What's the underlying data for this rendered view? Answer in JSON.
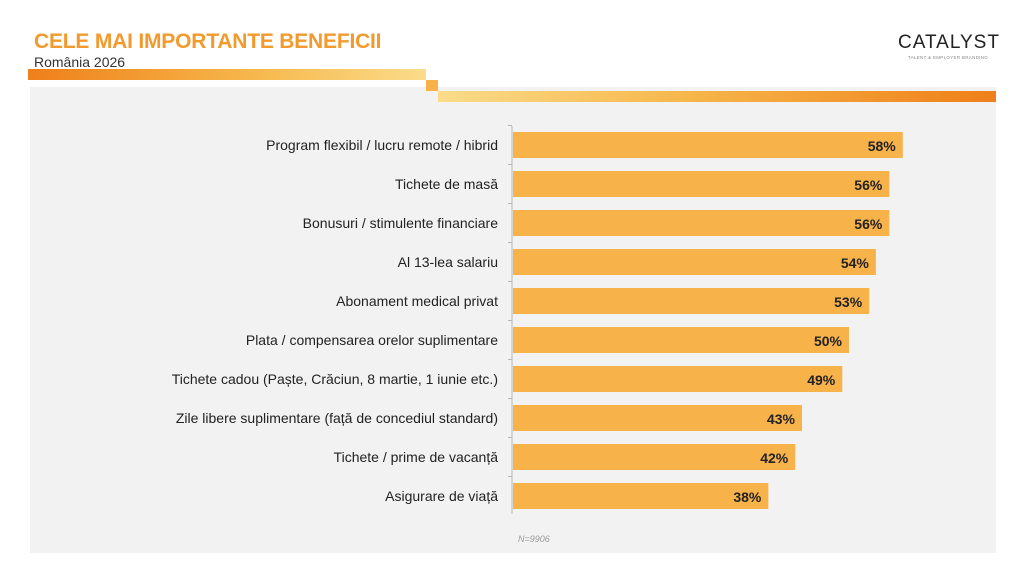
{
  "header": {
    "title": "CELE MAI IMPORTANTE BENEFICII",
    "subtitle": "România 2026"
  },
  "logo": {
    "wordmark": "CATALYST",
    "tagline": "TALENT & EMPLOYER BRANDING"
  },
  "colors": {
    "accent": "#f29a2e",
    "bar": "#f7b24a",
    "panel": "#f2f2f2"
  },
  "footnote": "N=9906",
  "chart_data": {
    "type": "bar",
    "orientation": "horizontal",
    "categories": [
      "Program flexibil / lucru remote / hibrid",
      "Tichete de masă",
      "Bonusuri / stimulente financiare",
      "Al 13-lea salariu",
      "Abonament medical privat",
      "Plata / compensarea orelor suplimentare",
      "Tichete cadou (Paște, Crăciun, 8 martie, 1 iunie etc.)",
      "Zile libere suplimentare (față de concediul standard)",
      "Tichete / prime de vacanță",
      "Asigurare de viață"
    ],
    "values": [
      58,
      56,
      56,
      54,
      53,
      50,
      49,
      43,
      42,
      38
    ],
    "value_labels": [
      "58%",
      "56%",
      "56%",
      "54%",
      "53%",
      "50%",
      "49%",
      "43%",
      "42%",
      "38%"
    ],
    "unit": "%",
    "xlim": [
      0,
      100
    ],
    "grid": false
  }
}
